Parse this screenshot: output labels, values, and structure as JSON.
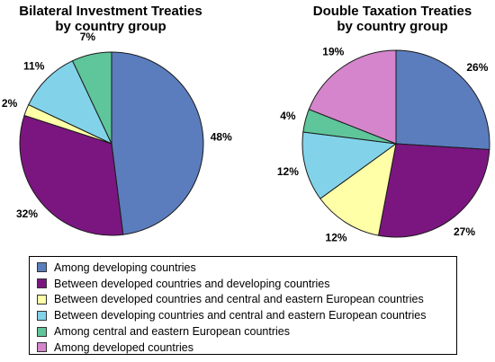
{
  "colors": {
    "among_developing": "#5B7DBE",
    "developed_developing": "#7B1680",
    "developed_cee": "#FFFFA8",
    "developing_cee": "#82D3EA",
    "among_cee": "#5FC59A",
    "among_developed": "#D585CC",
    "stroke": "#1a1a1a"
  },
  "legend": [
    {
      "key": "among_developing",
      "label": "Among developing countries"
    },
    {
      "key": "developed_developing",
      "label": "Between developed countries and developing countries"
    },
    {
      "key": "developed_cee",
      "label": "Between developed countries and central and eastern European countries"
    },
    {
      "key": "developing_cee",
      "label": "Between developing countries and central and eastern European countries"
    },
    {
      "key": "among_cee",
      "label": "Among central and eastern European countries"
    },
    {
      "key": "among_developed",
      "label": "Among developed countries"
    }
  ],
  "chart_data": [
    {
      "type": "pie",
      "title": "Bilateral Investment Treaties",
      "subtitle": "by country group",
      "slices": [
        {
          "key": "among_developing",
          "value": 48,
          "label": "48%"
        },
        {
          "key": "developed_developing",
          "value": 32,
          "label": "32%"
        },
        {
          "key": "developed_cee",
          "value": 2,
          "label": "2%"
        },
        {
          "key": "developing_cee",
          "value": 11,
          "label": "11%"
        },
        {
          "key": "among_cee",
          "value": 7,
          "label": "7%"
        }
      ]
    },
    {
      "type": "pie",
      "title": "Double Taxation Treaties",
      "subtitle": "by country group",
      "slices": [
        {
          "key": "among_developing",
          "value": 26,
          "label": "26%"
        },
        {
          "key": "developed_developing",
          "value": 27,
          "label": "27%"
        },
        {
          "key": "developed_cee",
          "value": 12,
          "label": "12%"
        },
        {
          "key": "developing_cee",
          "value": 12,
          "label": "12%"
        },
        {
          "key": "among_cee",
          "value": 4,
          "label": "4%"
        },
        {
          "key": "among_developed",
          "value": 19,
          "label": "19%"
        }
      ]
    }
  ]
}
